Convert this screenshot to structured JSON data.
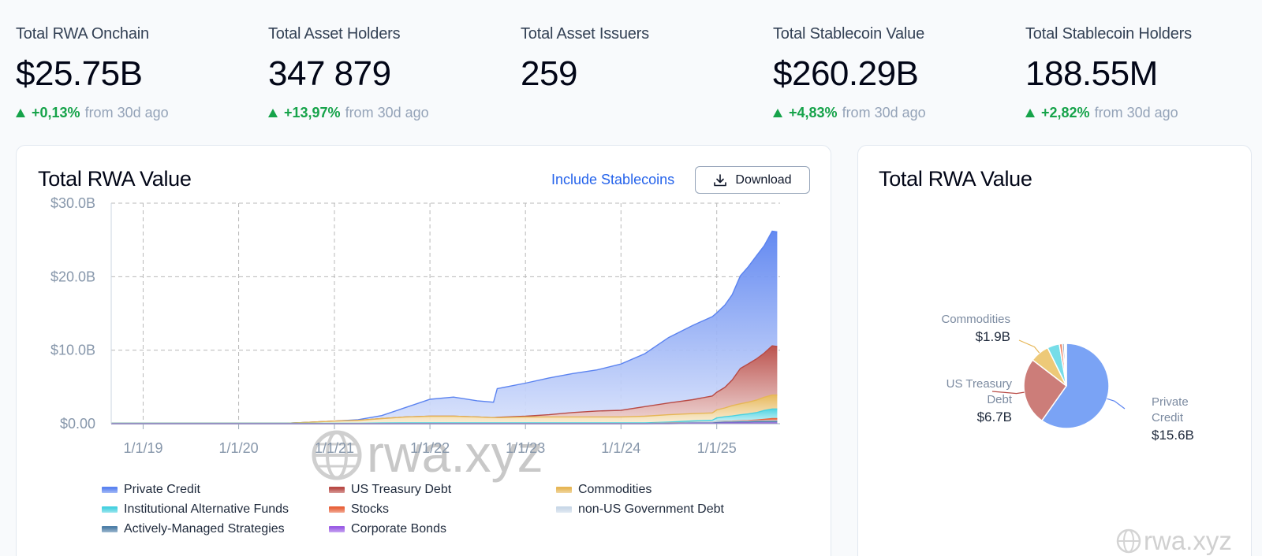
{
  "stats": [
    {
      "label": "Total RWA Onchain",
      "value": "$25.75B",
      "change": "+0,13%",
      "since": "from 30d ago"
    },
    {
      "label": "Total Asset Holders",
      "value": "347 879",
      "change": "+13,97%",
      "since": "from 30d ago"
    },
    {
      "label": "Total Asset Issuers",
      "value": "259",
      "change": "",
      "since": ""
    },
    {
      "label": "Total Stablecoin Value",
      "value": "$260.29B",
      "change": "+4,83%",
      "since": "from 30d ago"
    },
    {
      "label": "Total Stablecoin Holders",
      "value": "188.55M",
      "change": "+2,82%",
      "since": "from 30d ago"
    }
  ],
  "main_card": {
    "title": "Total RWA Value",
    "toggle_label": "Include Stablecoins",
    "download_label": "Download",
    "watermark": "rwa.xyz"
  },
  "side_card": {
    "title": "Total RWA Value",
    "watermark": "rwa.xyz"
  },
  "colors": {
    "Private Credit": "#5b83f0",
    "US Treasury Debt": "#b84a45",
    "Commodities": "#e6b655",
    "Institutional Alternative Funds": "#48d1e0",
    "Stocks": "#e8633c",
    "non-US Government Debt": "#c9d8e8",
    "Actively-Managed Strategies": "#4f7fa8",
    "Corporate Bonds": "#9b5de5"
  },
  "chart_data": [
    {
      "type": "area",
      "stacked": true,
      "title": "Total RWA Value",
      "x_ticks": [
        "1/1/19",
        "1/1/20",
        "1/1/21",
        "1/1/22",
        "1/1/23",
        "1/1/24",
        "1/1/25"
      ],
      "y_ticks": [
        "$0.00",
        "$10.0B",
        "$20.0B",
        "$30.0B"
      ],
      "ylim": [
        0,
        30
      ],
      "y_unit": "B USD",
      "grid": true,
      "legend_position": "bottom",
      "x": [
        "2018-09-01",
        "2019-01-01",
        "2019-07-01",
        "2020-01-01",
        "2020-07-01",
        "2021-01-01",
        "2021-04-01",
        "2021-07-01",
        "2021-10-01",
        "2022-01-01",
        "2022-04-01",
        "2022-07-01",
        "2022-09-01",
        "2022-09-15",
        "2023-01-01",
        "2023-04-01",
        "2023-07-01",
        "2023-10-01",
        "2024-01-01",
        "2024-04-01",
        "2024-07-01",
        "2024-10-01",
        "2024-12-15",
        "2025-01-01",
        "2025-02-01",
        "2025-03-01",
        "2025-04-01",
        "2025-05-01",
        "2025-06-01",
        "2025-07-01",
        "2025-08-01",
        "2025-08-20"
      ],
      "series": [
        {
          "name": "Corporate Bonds",
          "values": [
            0,
            0,
            0,
            0,
            0,
            0,
            0,
            0,
            0,
            0,
            0,
            0,
            0,
            0,
            0,
            0,
            0,
            0,
            0,
            0,
            0,
            0.05,
            0.05,
            0.05,
            0.1,
            0.1,
            0.1,
            0.1,
            0.1,
            0.1,
            0.1,
            0.1
          ]
        },
        {
          "name": "Actively-Managed Strategies",
          "values": [
            0,
            0,
            0,
            0,
            0,
            0,
            0,
            0,
            0,
            0,
            0,
            0,
            0,
            0,
            0,
            0,
            0,
            0,
            0,
            0,
            0.05,
            0.05,
            0.05,
            0.1,
            0.1,
            0.1,
            0.15,
            0.15,
            0.2,
            0.2,
            0.2,
            0.2
          ]
        },
        {
          "name": "non-US Government Debt",
          "values": [
            0,
            0,
            0,
            0,
            0,
            0,
            0,
            0,
            0,
            0,
            0,
            0,
            0,
            0,
            0,
            0,
            0,
            0,
            0,
            0,
            0.05,
            0.05,
            0.05,
            0.1,
            0.1,
            0.1,
            0.1,
            0.1,
            0.1,
            0.1,
            0.1,
            0.1
          ]
        },
        {
          "name": "Stocks",
          "values": [
            0,
            0,
            0,
            0,
            0,
            0,
            0,
            0,
            0.02,
            0.02,
            0.02,
            0.02,
            0.02,
            0.02,
            0.02,
            0.02,
            0.02,
            0.02,
            0.02,
            0.02,
            0.02,
            0.02,
            0.02,
            0.03,
            0.04,
            0.05,
            0.06,
            0.08,
            0.1,
            0.2,
            0.3,
            0.3
          ]
        },
        {
          "name": "Institutional Alternative Funds",
          "values": [
            0.05,
            0.05,
            0.05,
            0.05,
            0.05,
            0.05,
            0.05,
            0.1,
            0.1,
            0.1,
            0.1,
            0.1,
            0.1,
            0.1,
            0.1,
            0.1,
            0.1,
            0.1,
            0.1,
            0.1,
            0.1,
            0.2,
            0.3,
            0.5,
            0.6,
            0.7,
            0.8,
            0.9,
            1.0,
            1.2,
            1.3,
            1.3
          ]
        },
        {
          "name": "Commodities",
          "values": [
            0,
            0,
            0,
            0,
            0,
            0.3,
            0.4,
            0.6,
            0.8,
            0.9,
            0.9,
            0.8,
            0.7,
            0.7,
            0.8,
            0.8,
            0.8,
            0.8,
            0.8,
            0.9,
            1.0,
            1.0,
            1.0,
            1.1,
            1.2,
            1.4,
            1.5,
            1.6,
            1.7,
            1.8,
            1.9,
            1.9
          ]
        },
        {
          "name": "US Treasury Debt",
          "values": [
            0,
            0,
            0,
            0,
            0,
            0,
            0,
            0,
            0,
            0,
            0,
            0,
            0,
            0.05,
            0.1,
            0.3,
            0.6,
            0.8,
            0.9,
            1.3,
            1.6,
            1.9,
            2.3,
            2.4,
            2.8,
            3.5,
            4.8,
            5.2,
            5.6,
            6.0,
            6.7,
            6.6
          ]
        },
        {
          "name": "Private Credit",
          "values": [
            0,
            0,
            0,
            0,
            0,
            0,
            0.1,
            0.4,
            1.3,
            2.3,
            2.6,
            2.2,
            2.1,
            3.9,
            4.5,
            5.0,
            5.3,
            5.6,
            6.3,
            7.2,
            8.9,
            10.1,
            10.8,
            10.8,
            11.2,
            11.6,
            12.6,
            13.2,
            14.0,
            14.6,
            15.6,
            15.6
          ]
        }
      ]
    },
    {
      "type": "pie",
      "title": "Total RWA Value",
      "slices": [
        {
          "name": "Private Credit",
          "label": "Private Credit",
          "value": 15.6,
          "display": "$15.6B"
        },
        {
          "name": "US Treasury Debt",
          "label": "US Treasury Debt",
          "value": 6.7,
          "display": "$6.7B"
        },
        {
          "name": "Commodities",
          "label": "Commodities",
          "value": 1.9,
          "display": "$1.9B"
        },
        {
          "name": "Institutional Alternative Funds",
          "label": "",
          "value": 1.2,
          "display": ""
        },
        {
          "name": "Stocks",
          "label": "",
          "value": 0.3,
          "display": ""
        },
        {
          "name": "Actively-Managed Strategies",
          "label": "",
          "value": 0.2,
          "display": ""
        },
        {
          "name": "non-US Government Debt",
          "label": "",
          "value": 0.1,
          "display": ""
        },
        {
          "name": "Corporate Bonds",
          "label": "",
          "value": 0.1,
          "display": ""
        }
      ]
    }
  ],
  "legend": [
    "Private Credit",
    "US Treasury Debt",
    "Commodities",
    "Institutional Alternative Funds",
    "Stocks",
    "non-US Government Debt",
    "Actively-Managed Strategies",
    "Corporate Bonds"
  ]
}
